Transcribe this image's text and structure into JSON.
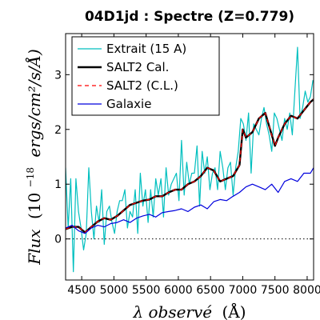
{
  "chart_data": {
    "type": "line",
    "title": "04D1jd : Spectre (Z=0.779)",
    "xlabel": "λ observé (Å)",
    "ylabel": "Flux (10^-18 ergs/cm²/s/Å)",
    "ylabel_parts": {
      "flux": "Flux",
      "base": "(10",
      "exp": "−18",
      "units": "ergs/cm²/s/Å)"
    },
    "xlabel_parts": {
      "lambda": "λ observé",
      "unit": "(Å)"
    },
    "xlim": [
      4250,
      8100
    ],
    "ylim": [
      -0.75,
      3.75
    ],
    "xticks": [
      4500,
      5000,
      5500,
      6000,
      6500,
      7000,
      7500,
      8000
    ],
    "yticks": [
      0,
      1,
      2,
      3
    ],
    "zero_line": true,
    "legend_position": "upper-left",
    "series": [
      {
        "name": "Extrait (15 A)",
        "color": "#00bfbf",
        "style": "solid",
        "x": [
          4250,
          4290,
          4330,
          4370,
          4410,
          4450,
          4490,
          4530,
          4570,
          4610,
          4650,
          4690,
          4730,
          4770,
          4810,
          4850,
          4890,
          4930,
          4970,
          5010,
          5050,
          5090,
          5130,
          5170,
          5210,
          5250,
          5290,
          5330,
          5370,
          5410,
          5450,
          5490,
          5530,
          5570,
          5610,
          5650,
          5690,
          5730,
          5770,
          5810,
          5850,
          5890,
          5930,
          5970,
          6010,
          6050,
          6090,
          6130,
          6170,
          6210,
          6250,
          6290,
          6330,
          6370,
          6410,
          6450,
          6490,
          6530,
          6570,
          6610,
          6650,
          6690,
          6730,
          6770,
          6810,
          6850,
          6890,
          6930,
          6970,
          7010,
          7050,
          7090,
          7130,
          7170,
          7210,
          7250,
          7290,
          7330,
          7370,
          7410,
          7450,
          7490,
          7530,
          7570,
          7610,
          7650,
          7690,
          7730,
          7770,
          7810,
          7850,
          7890,
          7930,
          7970,
          8010,
          8050,
          8090
        ],
        "y": [
          1.3,
          0.2,
          1.1,
          -0.6,
          1.1,
          0.5,
          0.2,
          -0.2,
          0.1,
          1.3,
          0.5,
          0.0,
          0.6,
          0.3,
          0.9,
          -0.1,
          0.5,
          0.6,
          0.3,
          0.1,
          0.5,
          0.7,
          0.7,
          0.9,
          0.2,
          0.5,
          0.4,
          0.9,
          0.1,
          1.2,
          0.6,
          0.9,
          0.3,
          0.9,
          0.4,
          1.1,
          0.8,
          1.1,
          0.4,
          1.3,
          0.8,
          1.0,
          1.1,
          1.2,
          0.7,
          1.8,
          0.8,
          1.4,
          1.0,
          1.2,
          1.2,
          1.7,
          0.6,
          1.6,
          1.2,
          1.5,
          0.9,
          1.2,
          1.3,
          0.9,
          1.6,
          1.3,
          0.9,
          1.3,
          1.4,
          0.8,
          1.3,
          1.6,
          2.2,
          2.1,
          1.8,
          2.3,
          1.2,
          2.1,
          2.0,
          1.9,
          2.2,
          2.4,
          2.1,
          1.9,
          1.6,
          2.3,
          2.2,
          2.0,
          1.8,
          2.2,
          2.0,
          2.3,
          1.9,
          2.7,
          3.5,
          2.2,
          2.4,
          2.7,
          2.5,
          2.6,
          2.9
        ]
      },
      {
        "name": "SALT2 Cal.",
        "color": "#000000",
        "style": "solid-thick",
        "x": [
          4250,
          4350,
          4450,
          4550,
          4650,
          4750,
          4850,
          4950,
          5050,
          5150,
          5250,
          5350,
          5450,
          5550,
          5650,
          5750,
          5850,
          5950,
          6050,
          6150,
          6250,
          6350,
          6450,
          6550,
          6650,
          6750,
          6850,
          6950,
          7000,
          7050,
          7150,
          7250,
          7350,
          7400,
          7450,
          7500,
          7550,
          7650,
          7750,
          7850,
          7950,
          8050,
          8100
        ],
        "y": [
          0.18,
          0.22,
          0.22,
          0.12,
          0.22,
          0.32,
          0.38,
          0.35,
          0.42,
          0.52,
          0.62,
          0.66,
          0.7,
          0.72,
          0.78,
          0.78,
          0.85,
          0.9,
          0.9,
          1.0,
          1.05,
          1.15,
          1.3,
          1.25,
          1.05,
          1.1,
          1.15,
          1.35,
          2.0,
          1.85,
          1.95,
          2.2,
          2.3,
          2.1,
          1.9,
          1.7,
          1.85,
          2.1,
          2.25,
          2.2,
          2.35,
          2.5,
          2.55
        ]
      },
      {
        "name": "SALT2 (C.L.)",
        "color": "#ff0000",
        "style": "dashed",
        "x": [
          4250,
          4350,
          4450,
          4550,
          4650,
          4750,
          4850,
          4950,
          5050,
          5150,
          5250,
          5350,
          5450,
          5550,
          5650,
          5750,
          5850,
          5950,
          6050,
          6150,
          6250,
          6350,
          6450,
          6550,
          6650,
          6750,
          6850,
          6950,
          7000,
          7050,
          7150,
          7250,
          7350,
          7400,
          7450,
          7500,
          7550,
          7650,
          7750,
          7850,
          7950,
          8050,
          8100
        ],
        "y": [
          0.18,
          0.22,
          0.22,
          0.12,
          0.22,
          0.32,
          0.38,
          0.35,
          0.42,
          0.52,
          0.62,
          0.66,
          0.7,
          0.72,
          0.78,
          0.78,
          0.85,
          0.9,
          0.9,
          1.0,
          1.05,
          1.15,
          1.3,
          1.25,
          1.05,
          1.1,
          1.15,
          1.35,
          2.0,
          1.85,
          1.95,
          2.2,
          2.3,
          2.1,
          1.9,
          1.7,
          1.85,
          2.1,
          2.25,
          2.2,
          2.35,
          2.5,
          2.55
        ]
      },
      {
        "name": "Galaxie",
        "color": "#0000dd",
        "style": "solid",
        "x": [
          4250,
          4350,
          4450,
          4550,
          4650,
          4750,
          4850,
          4950,
          5050,
          5150,
          5250,
          5350,
          5450,
          5550,
          5650,
          5750,
          5850,
          5950,
          6050,
          6150,
          6250,
          6350,
          6450,
          6550,
          6650,
          6750,
          6850,
          6950,
          7050,
          7150,
          7250,
          7350,
          7450,
          7550,
          7650,
          7750,
          7850,
          7950,
          8050,
          8100
        ],
        "y": [
          0.2,
          0.25,
          0.15,
          0.1,
          0.2,
          0.25,
          0.22,
          0.28,
          0.3,
          0.35,
          0.3,
          0.38,
          0.42,
          0.45,
          0.4,
          0.48,
          0.5,
          0.52,
          0.55,
          0.5,
          0.58,
          0.62,
          0.55,
          0.68,
          0.72,
          0.7,
          0.78,
          0.85,
          0.95,
          1.0,
          0.95,
          0.9,
          1.0,
          0.85,
          1.05,
          1.1,
          1.05,
          1.2,
          1.2,
          1.3
        ]
      }
    ]
  }
}
